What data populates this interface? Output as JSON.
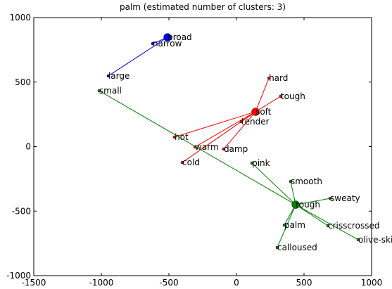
{
  "chart_data": {
    "type": "scatter",
    "title": "palm (estimated number of clusters: 3)",
    "xlim": [
      -1500,
      1000
    ],
    "ylim": [
      -1000,
      1000
    ],
    "xticks": [
      -1500,
      -1000,
      -500,
      0,
      500,
      1000
    ],
    "yticks": [
      -1000,
      -500,
      0,
      500,
      1000
    ],
    "series": [
      {
        "color": "#0000ff",
        "center": 0,
        "labels": [
          "broad",
          "narrow",
          "large"
        ],
        "x": [
          -510,
          -620,
          -948
        ],
        "y": [
          847,
          798,
          548
        ]
      },
      {
        "color": "#ff0000",
        "center": 0,
        "labels": [
          "soft",
          "hard",
          "tough",
          "tender",
          "hot",
          "warm",
          "damp",
          "cold"
        ],
        "x": [
          141,
          240,
          328,
          36,
          -458,
          -307,
          -94,
          -401
        ],
        "y": [
          270,
          531,
          390,
          193,
          74,
          -3,
          -19,
          -123
        ]
      },
      {
        "color": "#008000",
        "center": 0,
        "labels": [
          "rough",
          "small",
          "pink",
          "smooth",
          "sweaty",
          "crisscrossed",
          "palm",
          "olive-skinned",
          "calloused"
        ],
        "x": [
          438,
          -1016,
          115,
          401,
          693,
          677,
          354,
          901,
          302
        ],
        "y": [
          -450,
          433,
          -128,
          -270,
          -401,
          -613,
          -608,
          -722,
          -782
        ]
      }
    ]
  }
}
